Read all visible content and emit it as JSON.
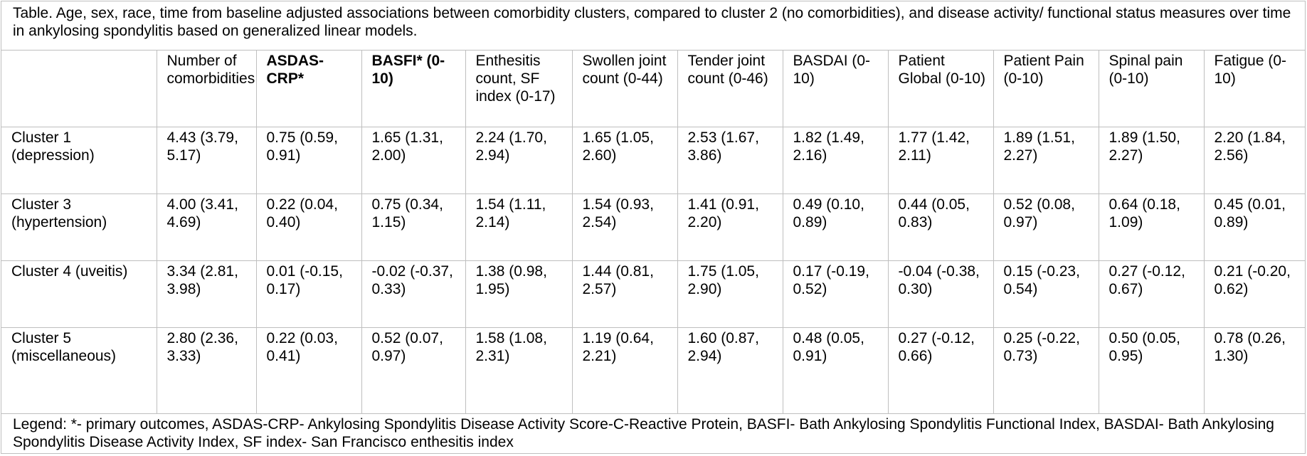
{
  "caption": "Table. Age, sex, race, time from baseline adjusted associations between comorbidity clusters, compared to cluster 2 (no comorbidities), and disease activity/ functional status measures over time in ankylosing spondylitis based on generalized linear models.",
  "headers": [
    "",
    "Number of comorbidities",
    "ASDAS-CRP*",
    "BASFI* (0-10)",
    "Enthesitis count, SF index (0-17)",
    "Swollen joint count (0-44)",
    "Tender joint count (0-46)",
    "BASDAI (0-10)",
    "Patient Global (0-10)",
    "Patient Pain (0-10)",
    "Spinal pain (0-10)",
    "Fatigue (0-10)"
  ],
  "rows": [
    [
      "Cluster 1 (depression)",
      "4.43 (3.79, 5.17)",
      "0.75 (0.59, 0.91)",
      "1.65 (1.31, 2.00)",
      "2.24 (1.70, 2.94)",
      "1.65 (1.05, 2.60)",
      "2.53 (1.67, 3.86)",
      "1.82 (1.49, 2.16)",
      "1.77 (1.42, 2.11)",
      "1.89 (1.51, 2.27)",
      "1.89 (1.50, 2.27)",
      "2.20 (1.84, 2.56)"
    ],
    [
      "Cluster 3 (hypertension)",
      "4.00 (3.41, 4.69)",
      "0.22 (0.04, 0.40)",
      "0.75 (0.34, 1.15)",
      "1.54 (1.11, 2.14)",
      "1.54 (0.93, 2.54)",
      "1.41 (0.91, 2.20)",
      "0.49 (0.10, 0.89)",
      "0.44 (0.05, 0.83)",
      "0.52 (0.08, 0.97)",
      "0.64 (0.18, 1.09)",
      "0.45 (0.01, 0.89)"
    ],
    [
      "Cluster 4 (uveitis)",
      "3.34 (2.81, 3.98)",
      "0.01 (-0.15, 0.17)",
      "-0.02 (-0.37, 0.33)",
      "1.38 (0.98, 1.95)",
      "1.44 (0.81, 2.57)",
      "1.75 (1.05, 2.90)",
      "0.17 (-0.19, 0.52)",
      "-0.04 (-0.38, 0.30)",
      "0.15 (-0.23, 0.54)",
      "0.27 (-0.12, 0.67)",
      "0.21 (-0.20, 0.62)"
    ],
    [
      "Cluster 5 (miscellaneous)",
      "2.80 (2.36, 3.33)",
      "0.22 (0.03, 0.41)",
      "0.52 (0.07, 0.97)",
      "1.58 (1.08, 2.31)",
      "1.19 (0.64, 2.21)",
      "1.60 (0.87, 2.94)",
      "0.48 (0.05, 0.91)",
      "0.27 (-0.12, 0.66)",
      "0.25 (-0.22, 0.73)",
      "0.50 (0.05, 0.95)",
      "0.78 (0.26, 1.30)"
    ]
  ],
  "legend": "Legend: *- primary outcomes, ASDAS-CRP- Ankylosing Spondylitis Disease Activity Score-C-Reactive Protein, BASFI- Bath Ankylosing Spondylitis Functional Index, BASDAI- Bath Ankylosing Spondylitis Disease Activity Index, SF index- San Francisco enthesitis index"
}
